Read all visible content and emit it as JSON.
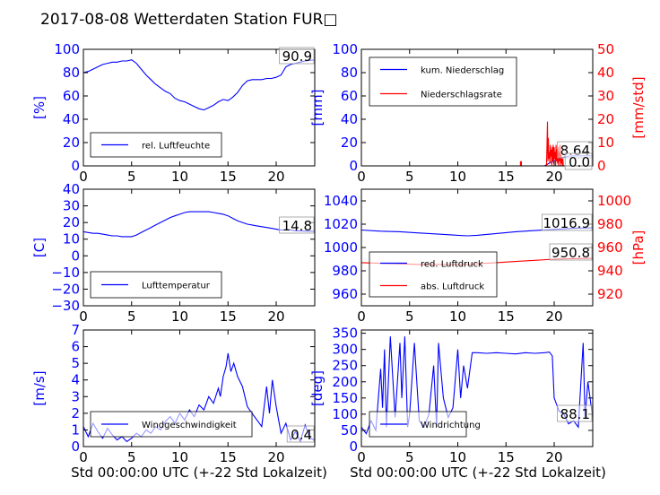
{
  "figure": {
    "title": "2017-08-08 Wetterdaten Station FUR□",
    "xlabel": "Std 00:00:00 UTC (+-22 Std Lokalzeit)",
    "colors": {
      "primary": "#0000ff",
      "secondary": "#ff0000",
      "axis": "#000000",
      "faint": "#8c8cf0"
    }
  },
  "chart_data": [
    {
      "id": "humidity",
      "type": "line",
      "ylabel": "[%]",
      "ylim": [
        0,
        100
      ],
      "yticks": [
        "0",
        "20",
        "40",
        "60",
        "80",
        "100"
      ],
      "xlim": [
        0,
        24
      ],
      "xticks": [
        "0",
        "5",
        "10",
        "15",
        "20"
      ],
      "legend": [
        "rel. Luftfeuchte"
      ],
      "legend_position": "lower-left",
      "annotation": "90.9",
      "series": [
        {
          "name": "rel. Luftfeuchte",
          "axis": "left",
          "color": "#0000ff",
          "x": [
            0,
            0.5,
            1,
            1.5,
            2,
            2.5,
            3,
            3.5,
            4,
            4.5,
            5,
            5.5,
            6,
            6.5,
            7,
            7.5,
            8,
            8.5,
            9,
            9.5,
            10,
            10.5,
            11,
            11.5,
            12,
            12.5,
            13,
            13.5,
            14,
            14.5,
            15,
            15.5,
            16,
            16.5,
            17,
            17.5,
            18,
            18.5,
            19,
            19.5,
            20,
            20.5,
            21,
            21.5,
            22,
            22.5,
            23,
            23.5,
            24
          ],
          "y": [
            80,
            81,
            83,
            85,
            87,
            88,
            89,
            89,
            90,
            90,
            91,
            88,
            83,
            78,
            74,
            70,
            67,
            64,
            62,
            58,
            56,
            55,
            53,
            51,
            49,
            48,
            50,
            52,
            55,
            57,
            56,
            59,
            63,
            69,
            73,
            74,
            74,
            74,
            75,
            75,
            76,
            78,
            85,
            87,
            88,
            89,
            90,
            90.5,
            90.9
          ]
        }
      ]
    },
    {
      "id": "precipitation",
      "type": "line",
      "ylabel": "[mm]",
      "ylabel_right": "[mm/std]",
      "ylim": [
        0,
        100
      ],
      "ylim_right": [
        0,
        50
      ],
      "yticks": [
        "0",
        "20",
        "40",
        "60",
        "80",
        "100"
      ],
      "yticks_right": [
        "0",
        "10",
        "20",
        "30",
        "40",
        "50"
      ],
      "xlim": [
        0,
        24
      ],
      "xticks": [
        "0",
        "5",
        "10",
        "15",
        "20"
      ],
      "legend": [
        "kum. Niederschlag",
        "Niederschlagsrate"
      ],
      "legend_position": "upper-left",
      "annotations": [
        "8.64",
        "0.0"
      ],
      "series": [
        {
          "name": "kum. Niederschlag",
          "axis": "left",
          "color": "#0000ff",
          "x": [
            0,
            19,
            19.3,
            19.6,
            20,
            20.3,
            20.6,
            21,
            21.3,
            21.6,
            22,
            24
          ],
          "y": [
            0,
            0,
            1.5,
            3,
            4.5,
            5.5,
            6.5,
            7.5,
            8,
            8.4,
            8.64,
            8.64
          ]
        },
        {
          "name": "Niederschlagsrate",
          "axis": "right",
          "color": "#ff0000",
          "x": [
            0,
            16.5,
            16.5,
            16.55,
            16.6,
            16.6,
            19.2,
            19.25,
            19.3,
            19.35,
            19.4,
            19.45,
            19.5,
            19.55,
            19.6,
            19.65,
            19.7,
            19.75,
            19.8,
            19.85,
            19.9,
            19.95,
            20,
            20.05,
            20.1,
            20.15,
            20.2,
            20.25,
            20.3,
            20.35,
            20.4,
            20.45,
            20.5,
            20.55,
            20.6,
            20.65,
            20.7,
            20.75,
            20.8,
            20.85,
            20.9,
            20.95,
            21,
            21.5,
            24
          ],
          "y": [
            0,
            0,
            2,
            0.5,
            2,
            0,
            0,
            8,
            19,
            2,
            12,
            3,
            6,
            1,
            9,
            4,
            7,
            0,
            8,
            2,
            9,
            1,
            8,
            3,
            6,
            0,
            9,
            2,
            7,
            1,
            8,
            0,
            6,
            2,
            9,
            0,
            5,
            1,
            4,
            0,
            3,
            0,
            0,
            0,
            0
          ]
        }
      ]
    },
    {
      "id": "temperature",
      "type": "line",
      "ylabel": "[C]",
      "ylim": [
        -30,
        40
      ],
      "yticks": [
        "−30",
        "−20",
        "−10",
        "0",
        "10",
        "20",
        "30",
        "40"
      ],
      "xlim": [
        0,
        24
      ],
      "xticks": [
        "0",
        "5",
        "10",
        "15",
        "20"
      ],
      "legend": [
        "Lufttemperatur"
      ],
      "legend_position": "lower-left",
      "annotation": "14.8",
      "series": [
        {
          "name": "Lufttemperatur",
          "axis": "left",
          "color": "#0000ff",
          "x": [
            0,
            0.5,
            1,
            1.5,
            2,
            2.5,
            3,
            3.5,
            4,
            4.5,
            5,
            5.5,
            6,
            6.5,
            7,
            7.5,
            8,
            8.5,
            9,
            9.5,
            10,
            10.5,
            11,
            11.5,
            12,
            12.5,
            13,
            13.5,
            14,
            14.5,
            15,
            15.5,
            16,
            16.5,
            17,
            17.5,
            18,
            18.5,
            19,
            19.5,
            20,
            20.5,
            21,
            21.5,
            22,
            22.5,
            23,
            23.5,
            24
          ],
          "y": [
            14.5,
            14,
            13.5,
            13.5,
            13,
            12.5,
            12,
            12,
            11.5,
            11.5,
            11.5,
            12.5,
            14,
            15.5,
            17,
            18.5,
            20,
            21.5,
            23,
            24,
            25,
            26,
            26.5,
            26.5,
            26.5,
            26.5,
            26.5,
            26,
            25.5,
            25,
            24,
            22.5,
            21,
            20,
            19,
            18.5,
            18,
            17.5,
            17,
            16.5,
            16,
            15.5,
            15.5,
            15.5,
            15,
            15,
            14.8,
            14.8,
            14.8
          ]
        }
      ]
    },
    {
      "id": "pressure",
      "type": "line",
      "ylim": [
        950,
        1050
      ],
      "ylim_right": [
        910,
        1010
      ],
      "yticks": [
        "960",
        "980",
        "1000",
        "1020",
        "1040"
      ],
      "yticks_right": [
        "920",
        "940",
        "960",
        "980",
        "1000"
      ],
      "ylabel_right": "[hPa]",
      "xlim": [
        0,
        24
      ],
      "xticks": [
        "0",
        "5",
        "10",
        "15",
        "20"
      ],
      "legend": [
        "red. Luftdruck",
        "abs. Luftdruck"
      ],
      "legend_position": "lower-left",
      "annotations": [
        "1016.9",
        "950.8"
      ],
      "series": [
        {
          "name": "red. Luftdruck",
          "axis": "left",
          "color": "#0000ff",
          "x": [
            0,
            2,
            4,
            6,
            8,
            10,
            11,
            12,
            14,
            16,
            18,
            20,
            22,
            24
          ],
          "y": [
            1015,
            1014,
            1013.5,
            1012.5,
            1011.5,
            1010.5,
            1010,
            1010.5,
            1012,
            1013.5,
            1014.5,
            1015.5,
            1016.5,
            1016.9
          ]
        },
        {
          "name": "abs. Luftdruck",
          "axis": "right",
          "color": "#ff0000",
          "x": [
            0,
            2,
            4,
            6,
            8,
            10,
            11,
            12,
            14,
            16,
            18,
            20,
            22,
            24
          ],
          "y": [
            947,
            946.5,
            946,
            945.5,
            945.5,
            945.5,
            945.5,
            946,
            947,
            948,
            949,
            950,
            950.5,
            950.8
          ]
        }
      ]
    },
    {
      "id": "windspeed",
      "type": "line",
      "ylabel": "[m/s]",
      "ylim": [
        0,
        7
      ],
      "yticks": [
        "0",
        "1",
        "2",
        "3",
        "4",
        "5",
        "6",
        "7"
      ],
      "xlim": [
        0,
        24
      ],
      "xticks": [
        "0",
        "5",
        "10",
        "15",
        "20"
      ],
      "legend": [
        "Windgeschwindigkeit"
      ],
      "legend_position": "lower-left",
      "annotation": "0.4",
      "series": [
        {
          "name": "Windgeschwindigkeit",
          "axis": "left",
          "color": "#0000ff",
          "x": [
            0,
            0.5,
            1,
            1.5,
            2,
            2.5,
            3,
            3.5,
            4,
            4.5,
            5,
            5.5,
            6,
            6.5,
            7,
            7.5,
            8,
            8.5,
            9,
            9.5,
            10,
            10.5,
            11,
            11.5,
            12,
            12.5,
            13,
            13.5,
            14,
            14.2,
            14.5,
            14.8,
            15,
            15.3,
            15.6,
            16,
            16.5,
            17,
            17.5,
            18,
            18.5,
            19,
            19.3,
            19.6,
            20,
            20.5,
            21,
            21.5,
            22,
            22.5,
            23,
            23.5,
            24
          ],
          "y": [
            1.2,
            0.6,
            1.4,
            0.9,
            0.5,
            1.1,
            0.7,
            0.4,
            0.6,
            0.3,
            0.5,
            0.8,
            0.6,
            1.0,
            0.8,
            1.2,
            1.0,
            1.5,
            1.8,
            1.4,
            2.0,
            1.6,
            2.2,
            1.8,
            2.5,
            2.2,
            3.0,
            2.6,
            3.5,
            3.0,
            4.2,
            4.8,
            5.6,
            4.5,
            5.0,
            4.2,
            3.6,
            2.4,
            2.0,
            1.6,
            1.2,
            3.6,
            2.0,
            4.0,
            2.4,
            0.8,
            1.4,
            0.4,
            0.9,
            0.3,
            1.3,
            0.5,
            0.4
          ]
        }
      ]
    },
    {
      "id": "winddirection",
      "type": "line",
      "ylabel": "[deg]",
      "ylim": [
        0,
        360
      ],
      "yticks": [
        "0",
        "50",
        "100",
        "150",
        "200",
        "250",
        "300",
        "350"
      ],
      "xlim": [
        0,
        24
      ],
      "xticks": [
        "0",
        "5",
        "10",
        "15",
        "20"
      ],
      "legend": [
        "Windrichtung"
      ],
      "legend_position": "lower-left",
      "annotation": "88.1",
      "series": [
        {
          "name": "Windrichtung",
          "axis": "left",
          "color": "#0000ff",
          "x": [
            0,
            0.5,
            1,
            1.5,
            2,
            2.2,
            2.4,
            2.6,
            2.8,
            3,
            3.5,
            4,
            4.2,
            4.5,
            4.8,
            5,
            5.5,
            6,
            6.5,
            7,
            7.5,
            7.8,
            8,
            8.5,
            9,
            9.5,
            10,
            10.3,
            10.6,
            11,
            11.5,
            12,
            13,
            14,
            15,
            16,
            17,
            18,
            19,
            19.5,
            19.8,
            20,
            20.5,
            21,
            21.5,
            22,
            22.5,
            23,
            23.2,
            23.5,
            24
          ],
          "y": [
            60,
            40,
            80,
            50,
            240,
            120,
            300,
            60,
            200,
            340,
            90,
            320,
            150,
            340,
            60,
            100,
            320,
            80,
            60,
            100,
            250,
            60,
            320,
            150,
            90,
            120,
            300,
            150,
            250,
            180,
            290,
            290,
            288,
            290,
            288,
            286,
            290,
            288,
            290,
            292,
            280,
            150,
            110,
            100,
            70,
            80,
            60,
            320,
            90,
            200,
            88
          ]
        }
      ]
    }
  ]
}
